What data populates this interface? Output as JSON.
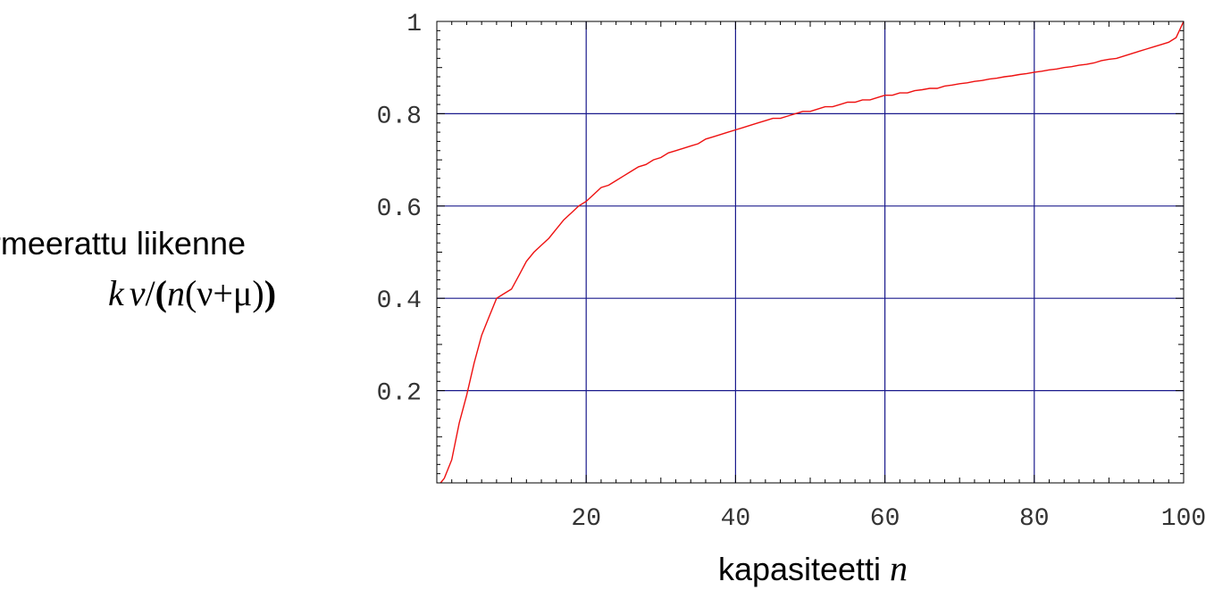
{
  "chart_data": {
    "type": "line",
    "xlabel": "kapasiteetti",
    "xlabel_var": "n",
    "ylabel_line1": "normeerattu liikenne",
    "ylabel_line2": {
      "k": "k",
      "nu": "ν",
      "slash": "/",
      "open_bold": "(",
      "n": "n",
      "open": "(",
      "nu2": "ν",
      "plus": "+",
      "mu": "μ",
      "close": ")",
      "close_bold": ")"
    },
    "xlim": [
      0,
      100
    ],
    "ylim": [
      0,
      1
    ],
    "xticks": [
      20,
      40,
      60,
      80,
      100
    ],
    "xtick_labels": [
      "20",
      "40",
      "60",
      "80",
      "100"
    ],
    "yticks": [
      0.2,
      0.4,
      0.6,
      0.8,
      1
    ],
    "ytick_labels": [
      "0.2",
      "0.4",
      "0.6",
      "0.8",
      "1"
    ],
    "grid": true,
    "colors": {
      "grid": "#1a1a8c",
      "line": "#ee1111",
      "frame": "#000000"
    },
    "series": [
      {
        "x": [
          0.5,
          1,
          2,
          3,
          4,
          5,
          6,
          7,
          8,
          9,
          10,
          11,
          12,
          13,
          14,
          15,
          16,
          17,
          18,
          19,
          20,
          21,
          22,
          23,
          24,
          25,
          26,
          27,
          28,
          29,
          30,
          31,
          32,
          33,
          34,
          35,
          36,
          37,
          38,
          39,
          40,
          41,
          42,
          43,
          44,
          45,
          46,
          47,
          48,
          49,
          50,
          51,
          52,
          53,
          54,
          55,
          56,
          57,
          58,
          59,
          60,
          61,
          62,
          63,
          64,
          65,
          66,
          67,
          68,
          69,
          70,
          71,
          72,
          73,
          74,
          75,
          76,
          77,
          78,
          79,
          80,
          81,
          82,
          83,
          84,
          85,
          86,
          87,
          88,
          89,
          90,
          91,
          92,
          93,
          94,
          95,
          96,
          97,
          98,
          99,
          100
        ],
        "y": [
          0.0,
          0.01,
          0.05,
          0.13,
          0.19,
          0.26,
          0.32,
          0.36,
          0.4,
          0.41,
          0.42,
          0.45,
          0.48,
          0.5,
          0.515,
          0.53,
          0.55,
          0.57,
          0.585,
          0.6,
          0.61,
          0.625,
          0.64,
          0.645,
          0.655,
          0.665,
          0.675,
          0.685,
          0.69,
          0.7,
          0.705,
          0.715,
          0.72,
          0.725,
          0.73,
          0.735,
          0.745,
          0.75,
          0.755,
          0.76,
          0.765,
          0.77,
          0.775,
          0.78,
          0.785,
          0.79,
          0.79,
          0.795,
          0.8,
          0.805,
          0.805,
          0.81,
          0.815,
          0.815,
          0.82,
          0.825,
          0.825,
          0.83,
          0.83,
          0.835,
          0.84,
          0.84,
          0.845,
          0.845,
          0.85,
          0.852,
          0.855,
          0.855,
          0.86,
          0.862,
          0.865,
          0.867,
          0.87,
          0.872,
          0.875,
          0.877,
          0.88,
          0.882,
          0.885,
          0.887,
          0.89,
          0.892,
          0.895,
          0.897,
          0.9,
          0.902,
          0.905,
          0.907,
          0.91,
          0.915,
          0.918,
          0.92,
          0.925,
          0.93,
          0.935,
          0.94,
          0.945,
          0.95,
          0.955,
          0.965,
          1.0
        ]
      }
    ]
  }
}
